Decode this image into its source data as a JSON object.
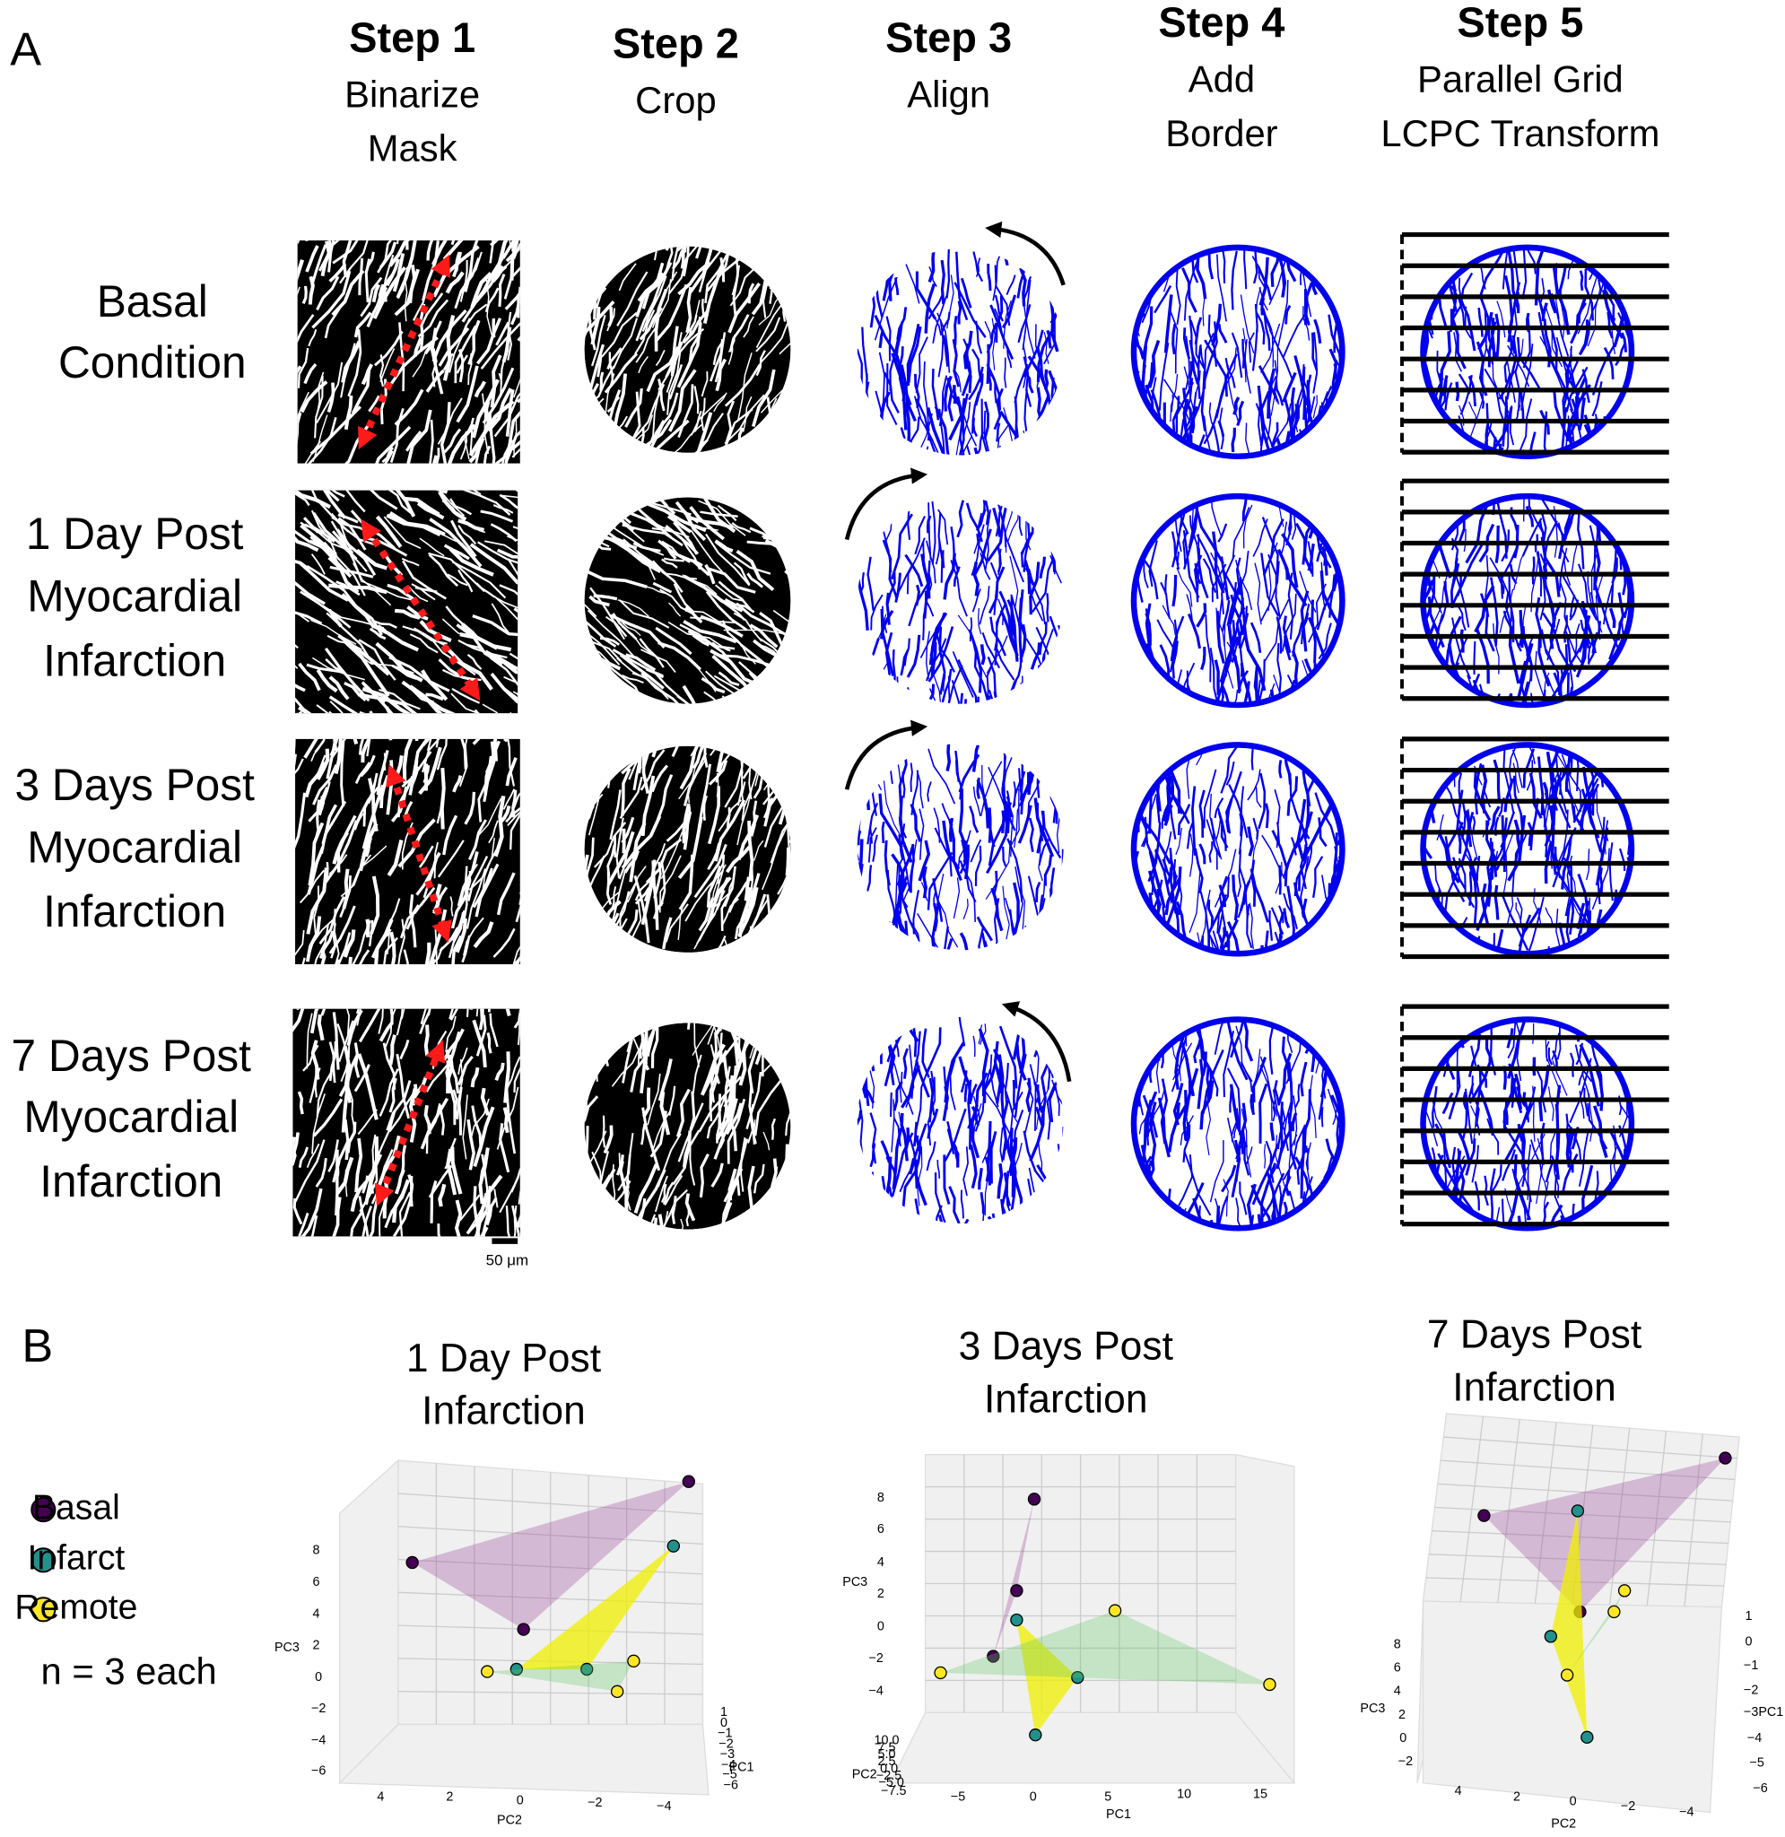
{
  "panel_a": {
    "label": "A",
    "steps": [
      {
        "title": "Step 1",
        "lines": [
          "Binarize",
          "Mask"
        ]
      },
      {
        "title": "Step 2",
        "lines": [
          "Crop"
        ]
      },
      {
        "title": "Step 3",
        "lines": [
          "Align"
        ]
      },
      {
        "title": "Step 4",
        "lines": [
          "Add",
          "Border"
        ]
      },
      {
        "title": "Step 5",
        "lines": [
          "Parallel Grid",
          "LCPC Transform"
        ]
      }
    ],
    "rows": [
      {
        "lines": [
          "Basal",
          "Condition"
        ]
      },
      {
        "lines": [
          "1 Day Post",
          "Myocardial",
          "Infarction"
        ]
      },
      {
        "lines": [
          "3 Days Post",
          "Myocardial",
          "Infarction"
        ]
      },
      {
        "lines": [
          "7 Days Post",
          "Myocardial",
          "Infarction"
        ]
      }
    ],
    "scale_bar": "50 μm"
  },
  "panel_b": {
    "label": "B",
    "legend": [
      "Basal",
      "Infarct",
      "Remote"
    ],
    "note": "n = 3 each",
    "plots": [
      {
        "title": [
          "1 Day Post",
          "Infarction"
        ],
        "x_label": "PC2",
        "y_label": "PC3",
        "z_label": "PC1",
        "pc3_ticks": [
          "8",
          "6",
          "4",
          "2",
          "0",
          "−2",
          "−4",
          "−6"
        ],
        "pc2_ticks": [
          "4",
          "2",
          "0",
          "−2",
          "−4"
        ],
        "pc1_ticks": [
          "1",
          "0",
          "−1",
          "−2",
          "−3",
          "−4",
          "−5",
          "−6"
        ]
      },
      {
        "title": [
          "3 Days Post",
          "Infarction"
        ],
        "x_label": "PC2",
        "y_label": "PC3",
        "z_label": "PC1",
        "pc3_ticks": [
          "8",
          "6",
          "4",
          "2",
          "0",
          "−2",
          "−4"
        ],
        "pc2_ticks": [
          "10.0",
          "7.5",
          "5.0",
          "2.5",
          "0.0",
          "−2.5",
          "−5.0",
          "−7.5"
        ],
        "pc1_ticks": [
          "−5",
          "0",
          "5",
          "10",
          "15"
        ]
      },
      {
        "title": [
          "7 Days Post",
          "Infarction"
        ],
        "x_label": "PC2",
        "y_label": "PC3",
        "z_label": "PC1",
        "pc3_ticks": [
          "8",
          "6",
          "4",
          "2",
          "0",
          "−2"
        ],
        "pc2_ticks": [
          "4",
          "2",
          "0",
          "−2",
          "−4"
        ],
        "pc1_ticks": [
          "1",
          "0",
          "−1",
          "−2",
          "−3",
          "−4",
          "−5",
          "−6"
        ]
      }
    ]
  }
}
